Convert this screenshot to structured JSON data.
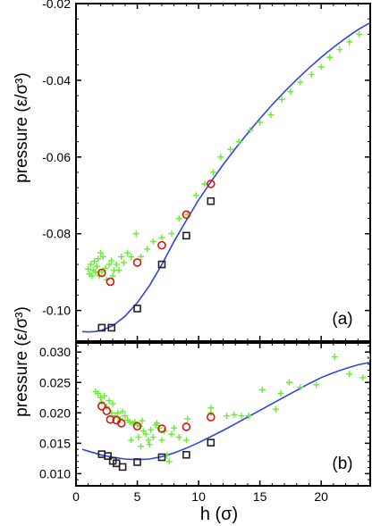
{
  "chart_data": [
    {
      "type": "scatter",
      "panel_label": "(a)",
      "ylabel": "pressure (ε/σ³)",
      "xlim": [
        0,
        24
      ],
      "ylim": [
        -0.108,
        -0.02
      ],
      "y_ticks": [
        -0.02,
        -0.04,
        -0.06,
        -0.08,
        -0.1
      ],
      "y_tick_labels": [
        "-0.02",
        "-0.04",
        "-0.06",
        "-0.08",
        "-0.10"
      ],
      "series": [
        {
          "marker": "plus",
          "color": "#66ee33",
          "points": [
            [
              1.0,
              -0.0892
            ],
            [
              1.1,
              -0.0905
            ],
            [
              1.2,
              -0.088
            ],
            [
              1.3,
              -0.091
            ],
            [
              1.4,
              -0.0895
            ],
            [
              1.5,
              -0.0872
            ],
            [
              1.6,
              -0.09
            ],
            [
              1.7,
              -0.0885
            ],
            [
              1.8,
              -0.0865
            ],
            [
              1.9,
              -0.091
            ],
            [
              2.0,
              -0.085
            ],
            [
              2.1,
              -0.09
            ],
            [
              2.2,
              -0.086
            ],
            [
              2.4,
              -0.089
            ],
            [
              2.5,
              -0.092
            ],
            [
              2.7,
              -0.088
            ],
            [
              2.9,
              -0.087
            ],
            [
              3.0,
              -0.091
            ],
            [
              3.1,
              -0.0895
            ],
            [
              3.3,
              -0.088
            ],
            [
              3.5,
              -0.0895
            ],
            [
              3.7,
              -0.086
            ],
            [
              3.9,
              -0.0875
            ],
            [
              4.2,
              -0.085
            ],
            [
              4.5,
              -0.086
            ],
            [
              4.9,
              -0.08
            ],
            [
              5.3,
              -0.086
            ],
            [
              5.8,
              -0.084
            ],
            [
              6.3,
              -0.082
            ],
            [
              7.0,
              -0.081
            ],
            [
              7.8,
              -0.08
            ],
            [
              8.4,
              -0.076
            ],
            [
              9.1,
              -0.075
            ],
            [
              9.8,
              -0.07
            ],
            [
              10.5,
              -0.067
            ],
            [
              11.2,
              -0.064
            ],
            [
              11.8,
              -0.06
            ],
            [
              12.6,
              -0.058
            ],
            [
              13.3,
              -0.056
            ],
            [
              14.2,
              -0.053
            ],
            [
              15.0,
              -0.051
            ],
            [
              15.9,
              -0.049
            ],
            [
              16.8,
              -0.045
            ],
            [
              17.5,
              -0.043
            ],
            [
              18.3,
              -0.0405
            ],
            [
              19.2,
              -0.0385
            ],
            [
              20.0,
              -0.0365
            ],
            [
              20.7,
              -0.034
            ],
            [
              21.5,
              -0.032
            ],
            [
              22.3,
              -0.03
            ],
            [
              23.1,
              -0.028
            ]
          ]
        },
        {
          "marker": "circle",
          "color": "#dd1111",
          "points": [
            [
              2.1,
              -0.0902
            ],
            [
              2.8,
              -0.0925
            ],
            [
              5.0,
              -0.0875
            ],
            [
              7.0,
              -0.083
            ],
            [
              9.0,
              -0.075
            ],
            [
              11.0,
              -0.067
            ]
          ]
        },
        {
          "marker": "square",
          "color": "#222222",
          "points": [
            [
              2.1,
              -0.1045
            ],
            [
              2.9,
              -0.1045
            ],
            [
              5.0,
              -0.0995
            ],
            [
              7.0,
              -0.088
            ],
            [
              9.0,
              -0.0805
            ],
            [
              11.0,
              -0.0715
            ]
          ]
        },
        {
          "marker": "line",
          "color": "#3344dd",
          "points": [
            [
              0.5,
              -0.1055
            ],
            [
              1.0,
              -0.1056
            ],
            [
              1.5,
              -0.1055
            ],
            [
              2.0,
              -0.1053
            ],
            [
              3.0,
              -0.104
            ],
            [
              4.0,
              -0.1015
            ],
            [
              5.0,
              -0.098
            ],
            [
              6.0,
              -0.0935
            ],
            [
              7.0,
              -0.088
            ],
            [
              8.0,
              -0.082
            ],
            [
              9.0,
              -0.0765
            ],
            [
              10.0,
              -0.0712
            ],
            [
              11.0,
              -0.0665
            ],
            [
              12.0,
              -0.062
            ],
            [
              13.0,
              -0.0578
            ],
            [
              14.0,
              -0.0538
            ],
            [
              15.0,
              -0.05
            ],
            [
              16.0,
              -0.0464
            ],
            [
              17.0,
              -0.043
            ],
            [
              18.0,
              -0.0398
            ],
            [
              19.0,
              -0.0368
            ],
            [
              20.0,
              -0.034
            ],
            [
              21.0,
              -0.0314
            ],
            [
              22.0,
              -0.029
            ],
            [
              23.0,
              -0.0268
            ],
            [
              24.0,
              -0.025
            ]
          ]
        }
      ]
    },
    {
      "type": "scatter",
      "panel_label": "(b)",
      "ylabel": "pressure (ε/σ³)",
      "xlabel": "h (σ)",
      "xlim": [
        0,
        24
      ],
      "ylim": [
        0.008,
        0.0315
      ],
      "x_ticks": [
        0,
        5,
        10,
        15,
        20
      ],
      "x_tick_labels": [
        "0",
        "5",
        "10",
        "15",
        "20"
      ],
      "y_ticks": [
        0.01,
        0.015,
        0.02,
        0.025,
        0.03
      ],
      "y_tick_labels": [
        "0.010",
        "0.015",
        "0.020",
        "0.025",
        "0.030"
      ],
      "series": [
        {
          "marker": "plus",
          "color": "#66ee33",
          "points": [
            [
              1.6,
              0.0235
            ],
            [
              1.8,
              0.0232
            ],
            [
              2.0,
              0.0225
            ],
            [
              2.1,
              0.0218
            ],
            [
              2.3,
              0.0228
            ],
            [
              2.5,
              0.021
            ],
            [
              2.7,
              0.022
            ],
            [
              2.9,
              0.02
            ],
            [
              3.0,
              0.0215
            ],
            [
              3.2,
              0.0195
            ],
            [
              3.4,
              0.02
            ],
            [
              3.6,
              0.019
            ],
            [
              3.8,
              0.0202
            ],
            [
              4.0,
              0.0195
            ],
            [
              4.2,
              0.0188
            ],
            [
              4.4,
              0.0185
            ],
            [
              4.6,
              0.0183
            ],
            [
              4.8,
              0.0185
            ],
            [
              5.0,
              0.018
            ],
            [
              5.2,
              0.0178
            ],
            [
              5.4,
              0.0187
            ],
            [
              5.5,
              0.017
            ],
            [
              5.7,
              0.0165
            ],
            [
              5.9,
              0.0155
            ],
            [
              6.1,
              0.0172
            ],
            [
              6.3,
              0.016
            ],
            [
              6.5,
              0.018
            ],
            [
              6.6,
              0.0183
            ],
            [
              6.8,
              0.0175
            ],
            [
              7.0,
              0.0155
            ],
            [
              7.2,
              0.017
            ],
            [
              7.4,
              0.013
            ],
            [
              7.6,
              0.012
            ],
            [
              7.8,
              0.0165
            ],
            [
              8.0,
              0.0175
            ],
            [
              8.4,
              0.016
            ],
            [
              9.1,
              0.019
            ],
            [
              9.0,
              0.0155
            ],
            [
              4.5,
              0.0155
            ],
            [
              5.1,
              0.016
            ],
            [
              5.3,
              0.0145
            ],
            [
              6.0,
              0.0148
            ],
            [
              11.0,
              0.02
            ],
            [
              11.0,
              0.0208
            ],
            [
              12.3,
              0.0195
            ],
            [
              12.9,
              0.0197
            ],
            [
              13.5,
              0.0195
            ],
            [
              14.1,
              0.0195
            ],
            [
              15.2,
              0.0238
            ],
            [
              16.3,
              0.0206
            ],
            [
              16.7,
              0.0232
            ],
            [
              17.4,
              0.025
            ],
            [
              18.3,
              0.0242
            ],
            [
              19.6,
              0.0246
            ],
            [
              21.1,
              0.0292
            ],
            [
              22.3,
              0.0264
            ],
            [
              23.4,
              0.0258
            ],
            [
              24.0,
              0.0292
            ]
          ]
        },
        {
          "marker": "circle",
          "color": "#dd1111",
          "points": [
            [
              2.1,
              0.0211
            ],
            [
              2.5,
              0.0203
            ],
            [
              2.8,
              0.0189
            ],
            [
              3.3,
              0.0188
            ],
            [
              3.7,
              0.0183
            ],
            [
              5.0,
              0.0178
            ],
            [
              7.0,
              0.0174
            ],
            [
              9.0,
              0.0177
            ],
            [
              11.0,
              0.0193
            ]
          ]
        },
        {
          "marker": "square",
          "color": "#222222",
          "points": [
            [
              2.1,
              0.0132
            ],
            [
              2.6,
              0.0129
            ],
            [
              3.0,
              0.0121
            ],
            [
              3.3,
              0.0117
            ],
            [
              3.8,
              0.0111
            ],
            [
              5.0,
              0.0119
            ],
            [
              7.0,
              0.0127
            ],
            [
              9.0,
              0.0131
            ],
            [
              11.0,
              0.0151
            ]
          ]
        },
        {
          "marker": "line",
          "color": "#3344dd",
          "points": [
            [
              0.5,
              0.014
            ],
            [
              1.0,
              0.0137
            ],
            [
              1.5,
              0.0134
            ],
            [
              2.0,
              0.0131
            ],
            [
              3.0,
              0.0127
            ],
            [
              4.0,
              0.0124
            ],
            [
              5.0,
              0.0123
            ],
            [
              6.0,
              0.0124
            ],
            [
              7.0,
              0.0128
            ],
            [
              8.0,
              0.0134
            ],
            [
              9.0,
              0.0142
            ],
            [
              10.0,
              0.0151
            ],
            [
              11.0,
              0.0161
            ],
            [
              12.0,
              0.0171
            ],
            [
              13.0,
              0.0182
            ],
            [
              14.0,
              0.0193
            ],
            [
              15.0,
              0.0204
            ],
            [
              16.0,
              0.0215
            ],
            [
              17.0,
              0.0226
            ],
            [
              18.0,
              0.0237
            ],
            [
              19.0,
              0.0248
            ],
            [
              20.0,
              0.0258
            ],
            [
              21.0,
              0.0266
            ],
            [
              22.0,
              0.0273
            ],
            [
              23.0,
              0.0279
            ],
            [
              24.0,
              0.0283
            ]
          ]
        }
      ]
    }
  ]
}
